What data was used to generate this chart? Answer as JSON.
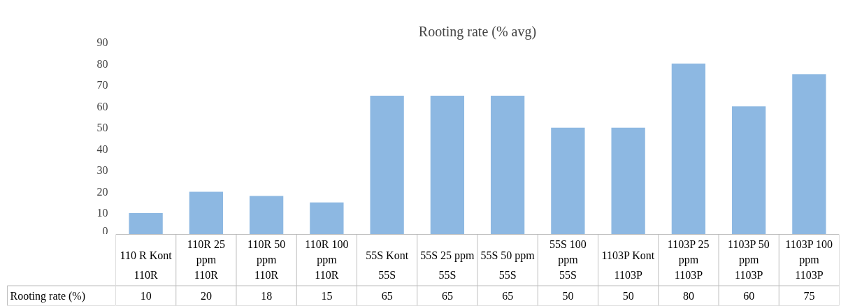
{
  "chart_data": {
    "type": "bar",
    "title": "Rooting rate (% avg)",
    "categories": [
      "110 R Kont 110R",
      "110R 25 ppm 110R",
      "110R 50 ppm 110R",
      "110R 100 ppm 110R",
      "55S Kont 55S",
      "55S 25 ppm 55S",
      "55S 50 ppm 55S",
      "55S 100 ppm 55S",
      "1103P Kont 1103P",
      "1103P 25 ppm 1103P",
      "1103P 50 ppm 1103P",
      "1103P 100 ppm 1103P"
    ],
    "series": [
      {
        "name": "Rooting rate (%)",
        "color": "#8db8e2",
        "values": [
          10,
          20,
          18,
          15,
          65,
          65,
          65,
          50,
          50,
          80,
          60,
          75
        ]
      }
    ],
    "ylim": [
      0,
      90
    ],
    "yticks": [
      0,
      10,
      20,
      30,
      40,
      50,
      60,
      70,
      80,
      90
    ],
    "data_labels": true,
    "grid": false,
    "legend": false
  }
}
